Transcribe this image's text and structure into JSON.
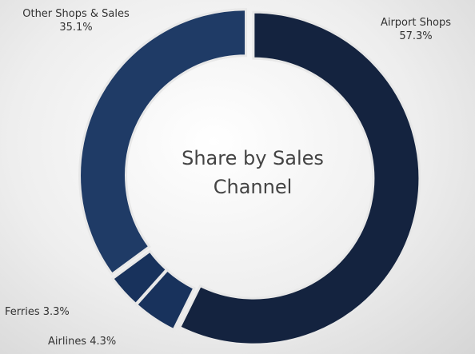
{
  "chart_data": {
    "type": "donut",
    "title": "Share by Sales Channel",
    "categories": [
      "Airport Shops",
      "Airlines",
      "Ferries",
      "Other Shops & Sales"
    ],
    "values": [
      57.3,
      4.3,
      3.3,
      35.1
    ],
    "value_labels": [
      "57.3%",
      "4.3%",
      "3.3%",
      "35.1%"
    ],
    "colors": [
      "#14233f",
      "#18325c",
      "#18325c",
      "#1f3b66"
    ]
  }
}
